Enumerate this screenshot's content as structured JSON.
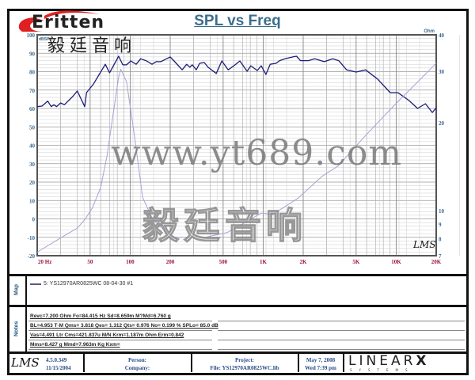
{
  "logo": {
    "brand": "Eritten",
    "chinese": "毅廷音响",
    "brand_color": "#e02020"
  },
  "chart_data": {
    "type": "line",
    "title": "SPL vs Freq",
    "x_scale": "log",
    "xlim": [
      20,
      20000
    ],
    "x_ticks": [
      {
        "value": 20,
        "label": "20  Hz"
      },
      {
        "value": 50,
        "label": "50"
      },
      {
        "value": 100,
        "label": "100"
      },
      {
        "value": 200,
        "label": "200"
      },
      {
        "value": 500,
        "label": "500"
      },
      {
        "value": 1000,
        "label": "1K"
      },
      {
        "value": 2000,
        "label": "2K"
      },
      {
        "value": 5000,
        "label": "5K"
      },
      {
        "value": 10000,
        "label": "10K"
      },
      {
        "value": 20000,
        "label": "20K"
      }
    ],
    "y_left": {
      "label": "dBSPL",
      "lim": [
        -20,
        100
      ],
      "ticks": [
        "100",
        "90",
        "80",
        "70",
        "60",
        "50",
        "40",
        "30",
        "20",
        "10",
        "0",
        "-10",
        "-20"
      ]
    },
    "y_right": {
      "label": "Ohm",
      "scale": "log",
      "lim": [
        7,
        40
      ],
      "ticks": [
        "40",
        "30",
        "20",
        "10",
        "9",
        "8",
        "7"
      ]
    },
    "grid": true,
    "series": [
      {
        "axis": "left",
        "color": "#1c1c78",
        "points": [
          [
            20,
            61
          ],
          [
            21.7,
            61.3
          ],
          [
            24,
            64
          ],
          [
            25.5,
            61
          ],
          [
            26.7,
            62
          ],
          [
            28,
            61
          ],
          [
            30,
            63
          ],
          [
            32,
            62
          ],
          [
            37,
            66.5
          ],
          [
            40,
            69.5
          ],
          [
            45.5,
            61
          ],
          [
            47,
            68.6
          ],
          [
            53,
            73.3
          ],
          [
            65,
            84
          ],
          [
            70,
            79.4
          ],
          [
            82,
            88.4
          ],
          [
            88,
            83.7
          ],
          [
            94,
            83.7
          ],
          [
            101,
            85.8
          ],
          [
            111,
            84
          ],
          [
            120,
            87
          ],
          [
            133,
            85.8
          ],
          [
            146,
            84
          ],
          [
            157,
            85.4
          ],
          [
            170,
            85.4
          ],
          [
            200,
            88
          ],
          [
            214,
            85.8
          ],
          [
            246,
            81
          ],
          [
            266,
            84
          ],
          [
            281,
            82.4
          ],
          [
            293,
            83.7
          ],
          [
            314,
            81
          ],
          [
            333,
            84.5
          ],
          [
            360,
            85
          ],
          [
            385,
            82.4
          ],
          [
            444,
            79
          ],
          [
            489,
            85.8
          ],
          [
            546,
            81
          ],
          [
            615,
            83.7
          ],
          [
            668,
            85.8
          ],
          [
            757,
            80.2
          ],
          [
            808,
            83.2
          ],
          [
            903,
            80.6
          ],
          [
            966,
            83.2
          ],
          [
            1049,
            78.5
          ],
          [
            1130,
            84
          ],
          [
            1250,
            84.5
          ],
          [
            1330,
            86
          ],
          [
            1460,
            87
          ],
          [
            1670,
            88
          ],
          [
            1780,
            88.4
          ],
          [
            1910,
            86
          ],
          [
            2190,
            86
          ],
          [
            2440,
            87
          ],
          [
            2880,
            85.4
          ],
          [
            3330,
            87
          ],
          [
            3700,
            86
          ],
          [
            4240,
            81
          ],
          [
            5000,
            79.8
          ],
          [
            5880,
            81
          ],
          [
            7240,
            76
          ],
          [
            9020,
            68.6
          ],
          [
            10300,
            68.6
          ],
          [
            12500,
            64.3
          ],
          [
            14500,
            60
          ],
          [
            16600,
            62.6
          ],
          [
            18700,
            57.8
          ],
          [
            20000,
            60.4
          ]
        ]
      },
      {
        "axis": "right",
        "color": "#a8a2d4",
        "points": [
          [
            20,
            7.2
          ],
          [
            32,
            8.2
          ],
          [
            40,
            8.7
          ],
          [
            45.5,
            9.3
          ],
          [
            52,
            10.2
          ],
          [
            60,
            12
          ],
          [
            67,
            15.4
          ],
          [
            74,
            21
          ],
          [
            82,
            28.7
          ],
          [
            85,
            30.5
          ],
          [
            94,
            27.6
          ],
          [
            108,
            17.9
          ],
          [
            124,
            11.1
          ],
          [
            148,
            9.3
          ],
          [
            206,
            8.1
          ],
          [
            370,
            8.1
          ],
          [
            535,
            8.4
          ],
          [
            734,
            9.1
          ],
          [
            965,
            9.8
          ],
          [
            1180,
            9.7
          ],
          [
            1820,
            11
          ],
          [
            2770,
            13.1
          ],
          [
            3650,
            14.2
          ],
          [
            5780,
            17.9
          ],
          [
            10000,
            23.3
          ],
          [
            15000,
            28
          ],
          [
            20000,
            32
          ]
        ]
      }
    ]
  },
  "lms_mark": "LMS",
  "map": {
    "label": "Map",
    "legend": "5: YS12970AR0825WC   08-04-30  #1",
    "legend_color": "#5a5a8a"
  },
  "notes": {
    "label": "Notes",
    "lines": [
      "Revc=7.200 Ohm  Fo=84.415 Hz  Sd=8.659m M?Md=6.760 g",
      "BL=4.953 T·M  Qms= 3.818  Qes= 1.312  Qts= 0.976  No= 0.199 %  SPLo= 85.0 dB",
      "Vas=4.491 Ltr  Cms=421.837u M/N  Krm=1.187m Ohm  Erm=0.842",
      "Mms=8.427 g  Mmd=7.963m Kg  Kxm="
    ]
  },
  "footer": {
    "version": "4.5.0.349",
    "build_date": "11/15/2004",
    "person": "Person:",
    "company": "Company:",
    "project": "Project:",
    "file": "File: YS12970AR0825WC.lib",
    "date": "May 7, 2008",
    "time": "Wed  7:39 pm",
    "vendor": "LINEAR",
    "vendor_x": "X",
    "vendor_sub": "SYSTEMS"
  },
  "watermarks": {
    "chinese": "毅廷音响",
    "url": "www.yt689.com"
  }
}
